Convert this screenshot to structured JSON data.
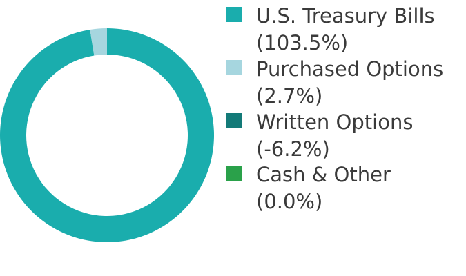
{
  "chart_data": {
    "type": "pie",
    "donut": true,
    "series": [
      {
        "name": "U.S. Treasury Bills",
        "color": "#1aadad",
        "values": [
          103.5
        ],
        "value_labels": [
          "(103.5%)"
        ]
      },
      {
        "name": "Purchased Options",
        "color": "#a6d6df",
        "values": [
          2.7
        ],
        "value_labels": [
          "(2.7%)"
        ]
      },
      {
        "name": "Written Options",
        "color": "#137a78",
        "values": [
          -6.2
        ],
        "value_labels": [
          "(-6.2%)"
        ]
      },
      {
        "name": "Cash & Other",
        "color": "#2aa14a",
        "values": [
          0.0
        ],
        "value_labels": [
          "(0.0%)"
        ]
      }
    ]
  }
}
